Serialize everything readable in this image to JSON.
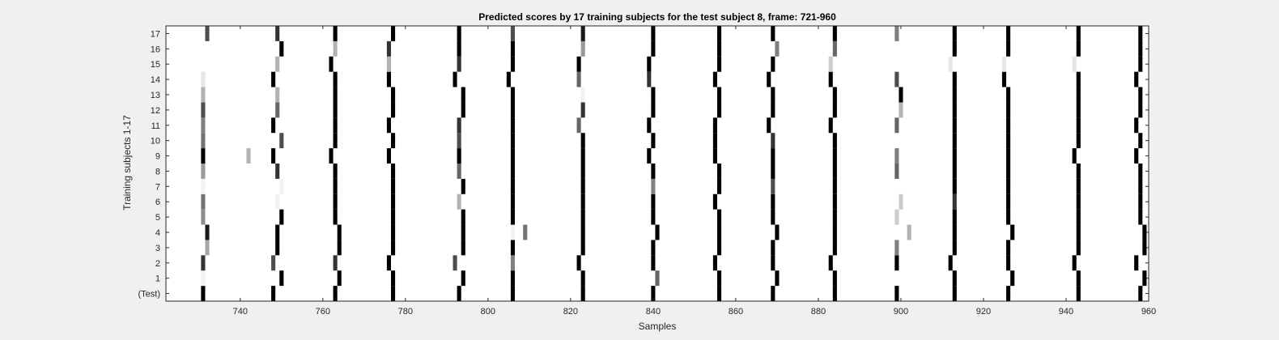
{
  "chart_data": {
    "type": "heatmap",
    "title": "Predicted scores by 17 training subjects for the test subject 8, frame: 721-960",
    "xlabel": "Samples",
    "ylabel": "Training subjects 1-17",
    "xlim": [
      722,
      960
    ],
    "x_ticks": [
      740,
      760,
      780,
      800,
      820,
      840,
      860,
      880,
      900,
      920,
      940,
      960
    ],
    "y_labels": [
      "(Test)",
      "1",
      "2",
      "3",
      "4",
      "5",
      "6",
      "7",
      "8",
      "9",
      "10",
      "11",
      "12",
      "13",
      "14",
      "15",
      "16",
      "17"
    ],
    "colormap": "gray (white = 0, black = 1)",
    "background_value": 0,
    "rows": [
      {
        "label": "(Test)",
        "cells": [
          [
            731,
            1
          ],
          [
            748,
            1
          ],
          [
            763,
            1
          ],
          [
            777,
            1
          ],
          [
            793,
            1
          ],
          [
            806,
            1
          ],
          [
            823,
            1
          ],
          [
            840,
            1
          ],
          [
            856,
            1
          ],
          [
            869,
            1
          ],
          [
            884,
            1
          ],
          [
            899,
            1
          ],
          [
            913,
            1
          ],
          [
            926,
            1
          ],
          [
            943,
            1
          ],
          [
            958,
            1
          ]
        ]
      },
      {
        "label": "1",
        "cells": [
          [
            731,
            0.05
          ],
          [
            750,
            1
          ],
          [
            764,
            1
          ],
          [
            777,
            1
          ],
          [
            794,
            1
          ],
          [
            806,
            1
          ],
          [
            823,
            1
          ],
          [
            841,
            0.6
          ],
          [
            856,
            1
          ],
          [
            870,
            1
          ],
          [
            884,
            1
          ],
          [
            913,
            1
          ],
          [
            927,
            1
          ],
          [
            943,
            1
          ],
          [
            959,
            1
          ]
        ]
      },
      {
        "label": "2",
        "cells": [
          [
            731,
            0.8
          ],
          [
            748,
            0.7
          ],
          [
            763,
            0.8
          ],
          [
            776,
            1
          ],
          [
            792,
            0.7
          ],
          [
            806,
            0.5
          ],
          [
            822,
            1
          ],
          [
            840,
            1
          ],
          [
            855,
            1
          ],
          [
            869,
            1
          ],
          [
            883,
            1
          ],
          [
            899,
            1
          ],
          [
            912,
            1
          ],
          [
            926,
            1
          ],
          [
            942,
            1
          ],
          [
            957,
            1
          ]
        ]
      },
      {
        "label": "3",
        "cells": [
          [
            732,
            0.35
          ],
          [
            749,
            1
          ],
          [
            764,
            1
          ],
          [
            777,
            1
          ],
          [
            794,
            1
          ],
          [
            806,
            1
          ],
          [
            823,
            1
          ],
          [
            840,
            1
          ],
          [
            856,
            1
          ],
          [
            869,
            1
          ],
          [
            884,
            1
          ],
          [
            899,
            0.5
          ],
          [
            913,
            1
          ],
          [
            926,
            1
          ],
          [
            943,
            1
          ],
          [
            959,
            1
          ]
        ]
      },
      {
        "label": "4",
        "cells": [
          [
            732,
            0.9
          ],
          [
            749,
            1
          ],
          [
            764,
            1
          ],
          [
            777,
            1
          ],
          [
            794,
            1
          ],
          [
            806,
            0.05
          ],
          [
            809,
            0.55
          ],
          [
            823,
            1
          ],
          [
            841,
            1
          ],
          [
            856,
            1
          ],
          [
            870,
            1
          ],
          [
            884,
            1
          ],
          [
            902,
            0.3
          ],
          [
            913,
            1
          ],
          [
            927,
            1
          ],
          [
            943,
            1
          ],
          [
            959,
            1
          ]
        ]
      },
      {
        "label": "5",
        "cells": [
          [
            731,
            0.45
          ],
          [
            750,
            1
          ],
          [
            763,
            1
          ],
          [
            777,
            1
          ],
          [
            794,
            1
          ],
          [
            806,
            1
          ],
          [
            823,
            1
          ],
          [
            840,
            1
          ],
          [
            856,
            1
          ],
          [
            869,
            1
          ],
          [
            884,
            1
          ],
          [
            899,
            0.2
          ],
          [
            913,
            1
          ],
          [
            926,
            1
          ],
          [
            943,
            1
          ],
          [
            958,
            1
          ]
        ]
      },
      {
        "label": "6",
        "cells": [
          [
            731,
            0.55
          ],
          [
            749,
            0.05
          ],
          [
            763,
            1
          ],
          [
            777,
            1
          ],
          [
            793,
            0.3
          ],
          [
            806,
            1
          ],
          [
            823,
            1
          ],
          [
            840,
            1
          ],
          [
            855,
            1
          ],
          [
            869,
            1
          ],
          [
            884,
            1
          ],
          [
            900,
            0.2
          ],
          [
            913,
            0.8
          ],
          [
            926,
            1
          ],
          [
            943,
            1
          ],
          [
            958,
            1
          ]
        ]
      },
      {
        "label": "7",
        "cells": [
          [
            731,
            0.05
          ],
          [
            750,
            0.05
          ],
          [
            763,
            1
          ],
          [
            777,
            1
          ],
          [
            794,
            1
          ],
          [
            806,
            1
          ],
          [
            823,
            1
          ],
          [
            840,
            0.5
          ],
          [
            856,
            1
          ],
          [
            869,
            0.7
          ],
          [
            884,
            1
          ],
          [
            913,
            1
          ],
          [
            926,
            1
          ],
          [
            943,
            1
          ],
          [
            958,
            1
          ]
        ]
      },
      {
        "label": "8",
        "cells": [
          [
            731,
            0.4
          ],
          [
            749,
            0.8
          ],
          [
            763,
            1
          ],
          [
            777,
            1
          ],
          [
            793,
            0.6
          ],
          [
            806,
            1
          ],
          [
            823,
            1
          ],
          [
            840,
            1
          ],
          [
            856,
            1
          ],
          [
            869,
            1
          ],
          [
            884,
            1
          ],
          [
            899,
            0.6
          ],
          [
            913,
            1
          ],
          [
            926,
            1
          ],
          [
            943,
            1
          ],
          [
            958,
            1
          ]
        ]
      },
      {
        "label": "9",
        "cells": [
          [
            731,
            1
          ],
          [
            742,
            0.3
          ],
          [
            748,
            1
          ],
          [
            762,
            1
          ],
          [
            776,
            1
          ],
          [
            793,
            1
          ],
          [
            806,
            1
          ],
          [
            823,
            1
          ],
          [
            839,
            1
          ],
          [
            855,
            1
          ],
          [
            869,
            1
          ],
          [
            884,
            1
          ],
          [
            899,
            0.5
          ],
          [
            913,
            1
          ],
          [
            926,
            1
          ],
          [
            942,
            1
          ],
          [
            957,
            1
          ]
        ]
      },
      {
        "label": "10",
        "cells": [
          [
            731,
            0.55
          ],
          [
            750,
            0.7
          ],
          [
            763,
            1
          ],
          [
            777,
            1
          ],
          [
            793,
            0.7
          ],
          [
            806,
            1
          ],
          [
            823,
            1
          ],
          [
            840,
            1
          ],
          [
            855,
            1
          ],
          [
            869,
            0.8
          ],
          [
            884,
            1
          ],
          [
            913,
            1
          ],
          [
            926,
            1
          ],
          [
            943,
            1
          ],
          [
            958,
            1
          ]
        ]
      },
      {
        "label": "11",
        "cells": [
          [
            731,
            0.5
          ],
          [
            748,
            1
          ],
          [
            763,
            1
          ],
          [
            776,
            1
          ],
          [
            793,
            0.8
          ],
          [
            806,
            1
          ],
          [
            822,
            0.6
          ],
          [
            839,
            1
          ],
          [
            855,
            1
          ],
          [
            868,
            1
          ],
          [
            883,
            1
          ],
          [
            899,
            0.6
          ],
          [
            913,
            1
          ],
          [
            926,
            1
          ],
          [
            943,
            1
          ],
          [
            957,
            1
          ]
        ]
      },
      {
        "label": "12",
        "cells": [
          [
            731,
            0.7
          ],
          [
            749,
            0.6
          ],
          [
            763,
            1
          ],
          [
            777,
            1
          ],
          [
            794,
            1
          ],
          [
            806,
            1
          ],
          [
            823,
            0.8
          ],
          [
            840,
            1
          ],
          [
            856,
            1
          ],
          [
            869,
            1
          ],
          [
            884,
            1
          ],
          [
            900,
            0.3
          ],
          [
            913,
            1
          ],
          [
            926,
            1
          ],
          [
            943,
            1
          ],
          [
            958,
            1
          ]
        ]
      },
      {
        "label": "13",
        "cells": [
          [
            731,
            0.3
          ],
          [
            749,
            0.3
          ],
          [
            763,
            1
          ],
          [
            777,
            1
          ],
          [
            794,
            1
          ],
          [
            806,
            1
          ],
          [
            823,
            0.05
          ],
          [
            840,
            1
          ],
          [
            856,
            1
          ],
          [
            869,
            1
          ],
          [
            884,
            1
          ],
          [
            900,
            1
          ],
          [
            913,
            1
          ],
          [
            926,
            1
          ],
          [
            943,
            1
          ],
          [
            958,
            1
          ]
        ]
      },
      {
        "label": "14",
        "cells": [
          [
            731,
            0.1
          ],
          [
            748,
            1
          ],
          [
            763,
            1
          ],
          [
            776,
            1
          ],
          [
            792,
            1
          ],
          [
            805,
            1
          ],
          [
            822,
            0.6
          ],
          [
            839,
            0.8
          ],
          [
            855,
            1
          ],
          [
            868,
            1
          ],
          [
            883,
            1
          ],
          [
            899,
            0.7
          ],
          [
            913,
            1
          ],
          [
            925,
            1
          ],
          [
            943,
            1
          ],
          [
            957,
            1
          ]
        ]
      },
      {
        "label": "15",
        "cells": [
          [
            749,
            0.3
          ],
          [
            762,
            1
          ],
          [
            776,
            0.3
          ],
          [
            793,
            0.8
          ],
          [
            806,
            1
          ],
          [
            822,
            1
          ],
          [
            839,
            1
          ],
          [
            856,
            1
          ],
          [
            869,
            1
          ],
          [
            883,
            0.2
          ],
          [
            912,
            0.1
          ],
          [
            925,
            0.1
          ],
          [
            942,
            0.1
          ],
          [
            958,
            1
          ]
        ]
      },
      {
        "label": "16",
        "cells": [
          [
            750,
            1
          ],
          [
            763,
            0.3
          ],
          [
            776,
            0.8
          ],
          [
            793,
            1
          ],
          [
            806,
            1
          ],
          [
            823,
            0.4
          ],
          [
            840,
            1
          ],
          [
            856,
            1
          ],
          [
            870,
            0.5
          ],
          [
            884,
            0.6
          ],
          [
            913,
            1
          ],
          [
            926,
            1
          ],
          [
            943,
            1
          ],
          [
            958,
            1
          ]
        ]
      },
      {
        "label": "17",
        "cells": [
          [
            732,
            0.7
          ],
          [
            749,
            0.8
          ],
          [
            763,
            1
          ],
          [
            777,
            1
          ],
          [
            793,
            1
          ],
          [
            806,
            0.7
          ],
          [
            823,
            0.9
          ],
          [
            840,
            1
          ],
          [
            856,
            1
          ],
          [
            869,
            1
          ],
          [
            884,
            1
          ],
          [
            899,
            0.5
          ],
          [
            913,
            1
          ],
          [
            926,
            1
          ],
          [
            943,
            1
          ],
          [
            958,
            1
          ]
        ]
      }
    ]
  }
}
